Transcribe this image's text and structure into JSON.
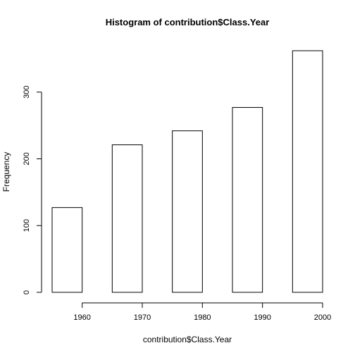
{
  "chart_data": {
    "type": "bar",
    "subtype": "histogram",
    "title": "Histogram of contribution$Class.Year",
    "xlabel": "contribution$Class.Year",
    "ylabel": "Frequency",
    "bins": [
      {
        "start": 1955,
        "end": 1960,
        "frequency": 127
      },
      {
        "start": 1965,
        "end": 1970,
        "frequency": 221
      },
      {
        "start": 1975,
        "end": 1980,
        "frequency": 242
      },
      {
        "start": 1985,
        "end": 1990,
        "frequency": 277
      },
      {
        "start": 1995,
        "end": 2000,
        "frequency": 362
      }
    ],
    "x_ticks": [
      1960,
      1970,
      1980,
      1990,
      2000
    ],
    "y_ticks": [
      0,
      100,
      200,
      300
    ],
    "xlim": [
      1955,
      2000
    ],
    "ylim": [
      0,
      362
    ],
    "grid": false,
    "legend": "none",
    "colors": {
      "bar_fill": "#ffffff",
      "bar_stroke": "#000000",
      "axis": "#000000"
    }
  }
}
